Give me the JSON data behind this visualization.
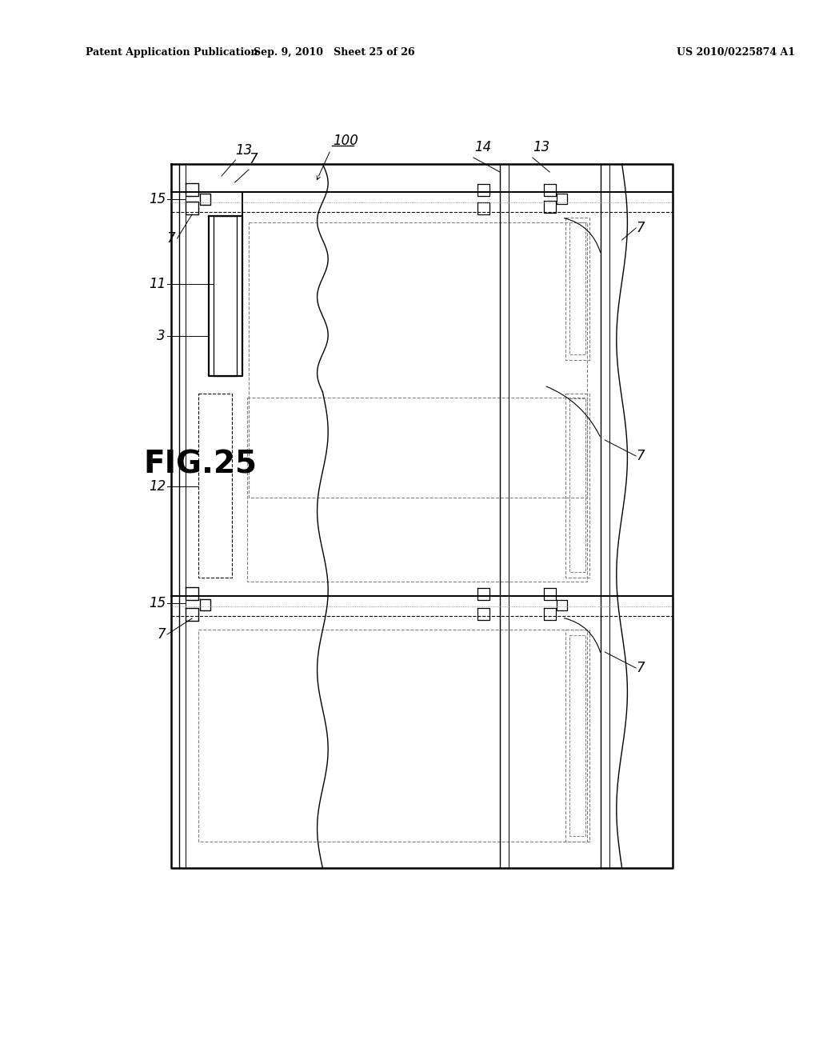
{
  "bg_color": "#ffffff",
  "header_left": "Patent Application Publication",
  "header_mid": "Sep. 9, 2010   Sheet 25 of 26",
  "header_right": "US 2010/0225874 A1",
  "fig_label": "FIG.25",
  "labels": {
    "15_top": "15",
    "13_top_left": "13",
    "7_top_left": "7",
    "100": "100",
    "14_top": "14",
    "13_top_right": "13",
    "7_top_right_upper": "7",
    "7_mid_right": "7",
    "11": "11",
    "3": "3",
    "12": "12",
    "15_bot": "15",
    "7_bot_left": "7",
    "7_bot_right": "7"
  }
}
